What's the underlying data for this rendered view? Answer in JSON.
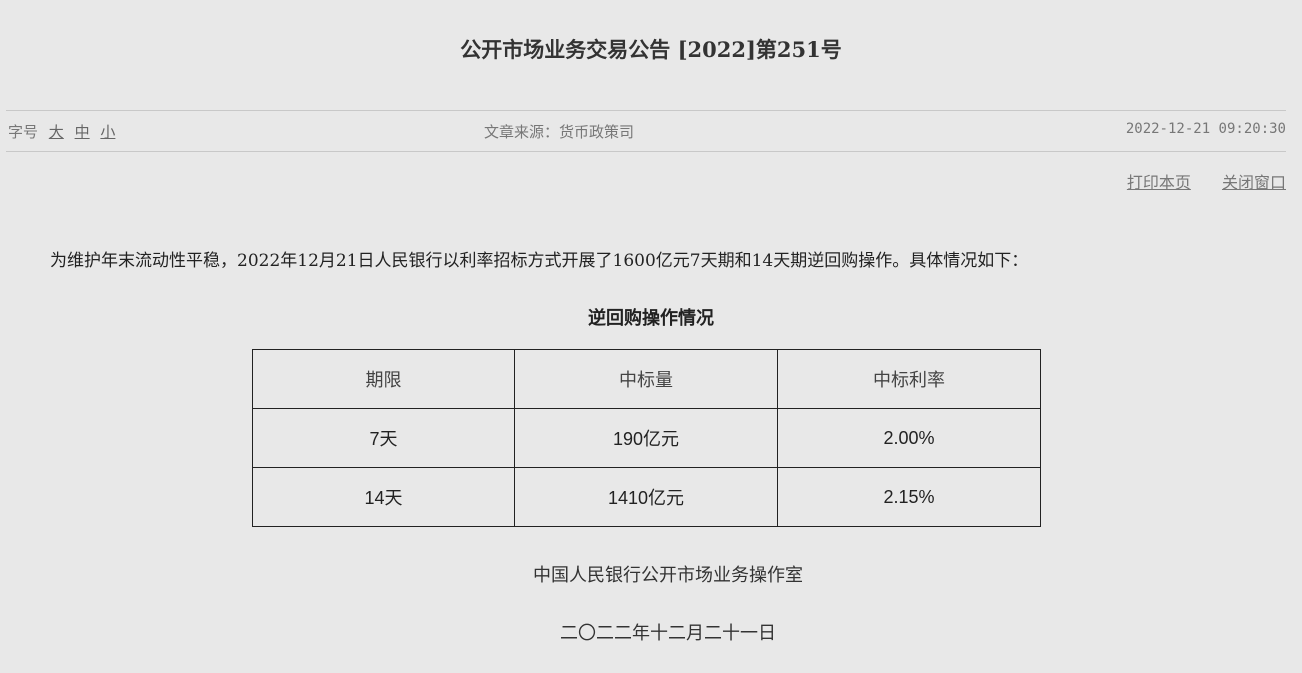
{
  "title": "公开市场业务交易公告 [2022]第251号",
  "meta": {
    "font_size_label": "字号",
    "font_sizes": [
      "大",
      "中",
      "小"
    ],
    "source": "文章来源：货币政策司",
    "datetime": "2022-12-21 09:20:30"
  },
  "actions": {
    "print": "打印本页",
    "close": "关闭窗口"
  },
  "body": {
    "paragraph": "为维护年末流动性平稳，2022年12月21日人民银行以利率招标方式开展了1600亿元7天期和14天期逆回购操作。具体情况如下：",
    "table_title": "逆回购操作情况",
    "table": {
      "headers": [
        "期限",
        "中标量",
        "中标利率"
      ],
      "rows": [
        [
          "7天",
          "190亿元",
          "2.00%"
        ],
        [
          "14天",
          "1410亿元",
          "2.15%"
        ]
      ]
    },
    "signature": "中国人民银行公开市场业务操作室",
    "date": "二〇二二年十二月二十一日"
  }
}
